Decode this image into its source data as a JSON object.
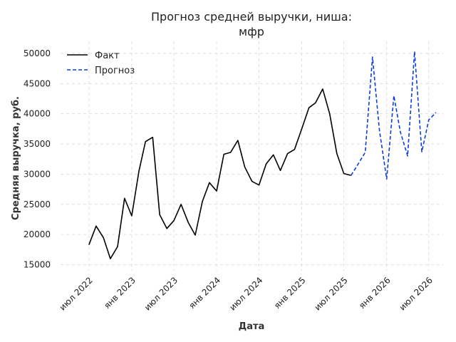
{
  "chart_data": {
    "type": "line",
    "title_lines": [
      "Прогноз средней выручки, ниша:",
      "мфр"
    ],
    "xlabel": "Дата",
    "ylabel": "Средняя выручка, руб.",
    "ylim": [
      14000,
      52000
    ],
    "y_ticks": [
      15000,
      20000,
      25000,
      30000,
      35000,
      40000,
      45000,
      50000
    ],
    "y_tick_labels": [
      "15000",
      "20000",
      "25000",
      "30000",
      "35000",
      "40000",
      "45000",
      "50000"
    ],
    "x_range": [
      "2022-03-01",
      "2026-09-01"
    ],
    "x_ticks": [
      "2022-07-01",
      "2023-01-01",
      "2023-07-01",
      "2024-01-01",
      "2024-07-01",
      "2025-01-01",
      "2025-07-01",
      "2026-01-01",
      "2026-07-01"
    ],
    "x_tick_labels": [
      "июл 2022",
      "янв 2023",
      "июл 2023",
      "янв 2024",
      "июл 2024",
      "янв 2025",
      "июл 2025",
      "янв 2026",
      "июл 2026"
    ],
    "grid": true,
    "legend_position": "top-left",
    "series": [
      {
        "name": "Факт",
        "color": "#000000",
        "style": "solid",
        "x": [
          "2022-07-01",
          "2022-08-01",
          "2022-09-01",
          "2022-10-01",
          "2022-11-01",
          "2022-12-01",
          "2023-01-01",
          "2023-02-01",
          "2023-03-01",
          "2023-04-01",
          "2023-05-01",
          "2023-06-01",
          "2023-07-01",
          "2023-08-01",
          "2023-09-01",
          "2023-10-01",
          "2023-11-01",
          "2023-12-01",
          "2024-01-01",
          "2024-02-01",
          "2024-03-01",
          "2024-04-01",
          "2024-05-01",
          "2024-06-01",
          "2024-07-01",
          "2024-08-01",
          "2024-09-01",
          "2024-10-01",
          "2024-11-01",
          "2024-12-01",
          "2025-01-01",
          "2025-02-01",
          "2025-03-01",
          "2025-04-01",
          "2025-05-01",
          "2025-06-01",
          "2025-07-01",
          "2025-08-01"
        ],
        "y": [
          18300,
          21400,
          19500,
          16000,
          18000,
          26000,
          23100,
          30500,
          35400,
          36100,
          23300,
          21000,
          22300,
          25000,
          22000,
          19900,
          25500,
          28600,
          27200,
          33300,
          33600,
          35600,
          31200,
          28800,
          28200,
          31700,
          33200,
          30600,
          33400,
          34100,
          37500,
          41000,
          41800,
          44100,
          40000,
          33400,
          30100,
          29800
        ]
      },
      {
        "name": "Прогноз",
        "color": "#0a3ddb",
        "style": "dashed",
        "x": [
          "2025-08-01",
          "2025-09-01",
          "2025-10-01",
          "2025-11-01",
          "2025-12-01",
          "2026-01-01",
          "2026-02-01",
          "2026-03-01",
          "2026-04-01",
          "2026-05-01",
          "2026-06-01",
          "2026-07-01",
          "2026-08-01"
        ],
        "y": [
          29800,
          31700,
          33600,
          49400,
          37200,
          29200,
          43000,
          37000,
          33000,
          50300,
          33700,
          39000,
          40200
        ]
      }
    ]
  }
}
